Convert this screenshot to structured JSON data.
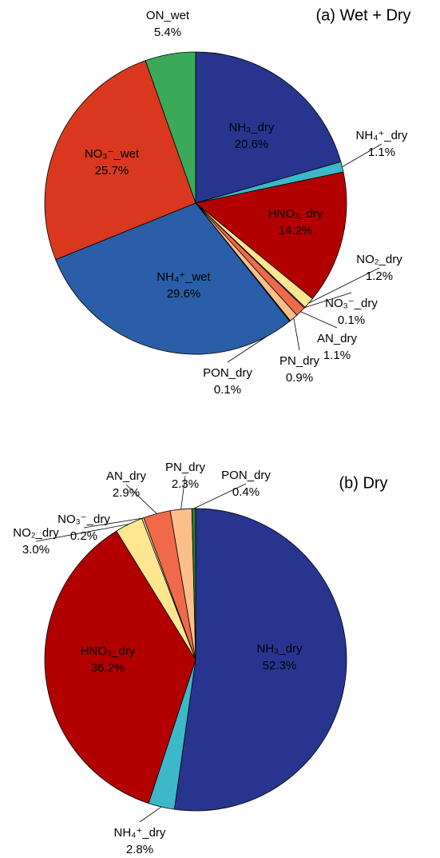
{
  "chart_data": [
    {
      "type": "pie",
      "title": "(a) Wet + Dry",
      "categories": [
        "NH₃_dry",
        "NH₄⁺_dry",
        "HNO₃_dry",
        "NO₂_dry",
        "NO₃⁻_dry",
        "AN_dry",
        "PN_dry",
        "PON_dry",
        "NH₄⁺_wet",
        "NO₃⁻_wet",
        "ON_wet"
      ],
      "values": [
        20.6,
        1.1,
        14.2,
        1.2,
        0.1,
        1.1,
        0.9,
        0.1,
        29.6,
        25.7,
        5.4
      ],
      "value_labels": [
        "20.6%",
        "1.1%",
        "14.2%",
        "1.2%",
        "0.1%",
        "1.1%",
        "0.9%",
        "0.1%",
        "29.6%",
        "25.7%",
        "5.4%"
      ],
      "colors": [
        "#27358f",
        "#3cb8c8",
        "#b20000",
        "#fde68f",
        "#fdeec0",
        "#f06a4a",
        "#fcbf8a",
        "#2e7d32",
        "#2b5ea8",
        "#d9381e",
        "#3aa95a"
      ]
    },
    {
      "type": "pie",
      "title": "(b) Dry",
      "categories": [
        "NH₃_dry",
        "NH₄⁺_dry",
        "HNO₃_dry",
        "NO₂_dry",
        "NO₃⁻_dry",
        "AN_dry",
        "PN_dry",
        "PON_dry"
      ],
      "values": [
        52.3,
        2.8,
        36.2,
        3.0,
        0.2,
        2.9,
        2.3,
        0.4
      ],
      "value_labels": [
        "52.3%",
        "2.8%",
        "36.2%",
        "3.0%",
        "0.2%",
        "2.9%",
        "2.3%",
        "0.4%"
      ],
      "colors": [
        "#27358f",
        "#3cb8c8",
        "#b20000",
        "#fde68f",
        "#fdeec0",
        "#f06a4a",
        "#fcbf8a",
        "#2e7d32"
      ]
    }
  ]
}
